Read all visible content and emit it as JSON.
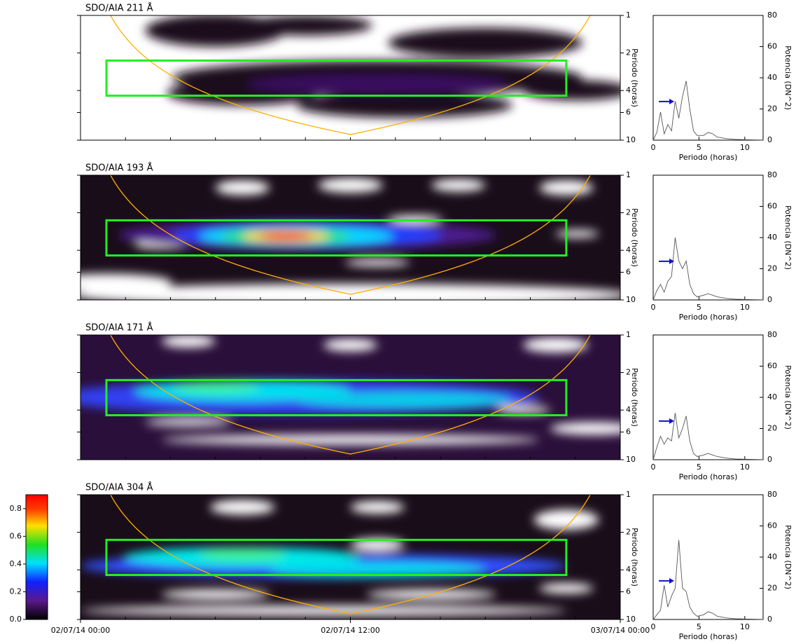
{
  "chart_data": [
    {
      "type": "heatmap",
      "title": "SDO/AIA 211 Å",
      "ylabel": "Periodo (horas)",
      "log_y": true,
      "ylim": [
        1,
        10
      ],
      "yticks": [
        1,
        2,
        4,
        6,
        10
      ],
      "xlim": [
        0,
        24
      ]
    },
    {
      "type": "heatmap",
      "title": "SDO/AIA 193 Å",
      "ylabel": "Periodo (horas)",
      "log_y": true,
      "ylim": [
        1,
        10
      ],
      "yticks": [
        1,
        2,
        4,
        6,
        10
      ],
      "xlim": [
        0,
        24
      ]
    },
    {
      "type": "heatmap",
      "title": "SDO/AIA 171 Å",
      "ylabel": "Periodo (horas)",
      "log_y": true,
      "ylim": [
        1,
        10
      ],
      "yticks": [
        1,
        2,
        4,
        6,
        10
      ],
      "xlim": [
        0,
        24
      ]
    },
    {
      "type": "heatmap",
      "title": "SDO/AIA 304 Å",
      "ylabel": "Periodo (horas)",
      "log_y": true,
      "ylim": [
        1,
        10
      ],
      "yticks": [
        1,
        2,
        4,
        6,
        10
      ],
      "xlim": [
        0,
        24
      ],
      "xticks": [
        {
          "value": 0,
          "label": "02/07/14 00:00"
        },
        {
          "value": 12,
          "label": "02/07/14 12:00"
        },
        {
          "value": 24,
          "label": "03/07/14 00:00"
        }
      ]
    },
    {
      "type": "line",
      "xlabel": "Periodo (horas)",
      "ylabel": "Potencia (DN^2)",
      "xlim": [
        0,
        12
      ],
      "xticks": [
        0,
        5,
        10
      ],
      "ylim": [
        0,
        80
      ],
      "yticks": [
        0,
        20,
        40,
        60,
        80
      ],
      "color": "#555555",
      "x": [
        0,
        0.4,
        0.8,
        1.2,
        1.6,
        2,
        2.4,
        2.8,
        3.2,
        3.6,
        4,
        4.4,
        4.8,
        5.5,
        6,
        6.5,
        7,
        8,
        9,
        10,
        12
      ],
      "values": [
        0,
        5,
        18,
        4,
        10,
        6,
        25,
        14,
        28,
        38,
        20,
        6,
        3,
        3,
        5,
        4,
        2,
        1,
        0.5,
        0.3,
        0.1
      ]
    },
    {
      "type": "line",
      "xlabel": "Periodo (horas)",
      "ylabel": "Potencia (DN^2)",
      "xlim": [
        0,
        12
      ],
      "xticks": [
        0,
        5,
        10
      ],
      "ylim": [
        0,
        80
      ],
      "yticks": [
        0,
        20,
        40,
        60,
        80
      ],
      "color": "#555555",
      "x": [
        0,
        0.4,
        0.8,
        1.2,
        1.6,
        2,
        2.4,
        2.8,
        3.2,
        3.6,
        4,
        4.4,
        4.8,
        5.5,
        6,
        6.5,
        7,
        8,
        9,
        10,
        12
      ],
      "values": [
        0,
        6,
        10,
        5,
        12,
        15,
        40,
        25,
        20,
        25,
        10,
        4,
        2,
        3,
        4,
        3,
        2,
        1,
        0.5,
        0.3,
        0.1
      ]
    },
    {
      "type": "line",
      "xlabel": "Periodo (horas)",
      "ylabel": "Potencia (DN^2)",
      "xlim": [
        0,
        12
      ],
      "xticks": [
        0,
        5,
        10
      ],
      "ylim": [
        0,
        80
      ],
      "yticks": [
        0,
        20,
        40,
        60,
        80
      ],
      "color": "#555555",
      "x": [
        0,
        0.4,
        0.8,
        1.2,
        1.6,
        2,
        2.4,
        2.8,
        3.2,
        3.6,
        4,
        4.4,
        4.8,
        5.5,
        6,
        6.5,
        7,
        8,
        9,
        10,
        12
      ],
      "values": [
        0,
        8,
        15,
        10,
        14,
        12,
        30,
        14,
        20,
        28,
        12,
        4,
        2,
        3,
        4,
        3,
        2,
        1,
        0.5,
        0.3,
        0.1
      ]
    },
    {
      "type": "line",
      "xlabel": "Periodo (horas)",
      "ylabel": "Potencia (DN^2)",
      "xlim": [
        0,
        12
      ],
      "xticks": [
        0,
        5,
        10
      ],
      "ylim": [
        0,
        80
      ],
      "yticks": [
        0,
        20,
        40,
        60,
        80
      ],
      "color": "#555555",
      "x": [
        0,
        0.4,
        0.8,
        1.2,
        1.6,
        2,
        2.4,
        2.8,
        3.2,
        3.6,
        4,
        4.4,
        4.8,
        5.5,
        6,
        6.5,
        7,
        8,
        9,
        10,
        12
      ],
      "values": [
        0,
        3,
        6,
        22,
        8,
        15,
        20,
        51,
        20,
        18,
        8,
        4,
        2,
        3,
        5,
        4,
        2,
        1,
        0.5,
        0.3,
        0.1
      ]
    },
    {
      "type": "colorbar",
      "ylim": [
        0,
        0.9
      ],
      "yticks": [
        0.0,
        0.2,
        0.4,
        0.6,
        0.8
      ]
    }
  ]
}
